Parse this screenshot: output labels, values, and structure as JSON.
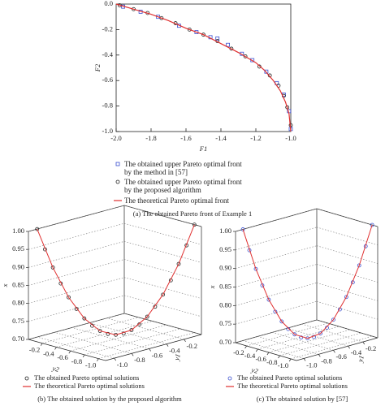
{
  "chart_data": [
    {
      "type": "scatter",
      "caption": "(a) The obtained Pareto front of Example 1",
      "xlabel": "F1",
      "ylabel": "F2",
      "xlim": [
        -2,
        -1
      ],
      "ylim": [
        -1,
        0
      ],
      "xticks": [
        {
          "value": -2,
          "label": "-2.0"
        },
        -1.8,
        -1.6,
        -1.4,
        -1.2,
        {
          "value": -1,
          "label": "-1.0"
        }
      ],
      "yticks": [
        {
          "value": -1,
          "label": "-1.0"
        },
        -0.8,
        -0.6,
        -0.4,
        -0.2,
        {
          "value": 0,
          "label": "0.0"
        }
      ],
      "series": [
        {
          "name": "The obtained upper Pareto optimal front by the method in [57]",
          "color": "#3a4fd0",
          "marker": "square",
          "x": [
            -1.96,
            -1.86,
            -1.76,
            -1.64,
            -1.54,
            -1.46,
            -1.42,
            -1.36,
            -1.28,
            -1.22,
            -1.14,
            -1.08,
            -1.04,
            -1.01,
            -1.0
          ],
          "y": [
            -0.02,
            -0.06,
            -0.1,
            -0.17,
            -0.22,
            -0.26,
            -0.27,
            -0.32,
            -0.39,
            -0.44,
            -0.53,
            -0.62,
            -0.71,
            -0.84,
            -0.98
          ]
        },
        {
          "name": "The obtained upper Pareto optimal front by the proposed algorithm",
          "color": "#222222",
          "marker": "circle",
          "x": [
            -1.98,
            -1.9,
            -1.82,
            -1.74,
            -1.66,
            -1.58,
            -1.5,
            -1.42,
            -1.34,
            -1.26,
            -1.18,
            -1.12,
            -1.07,
            -1.04,
            -1.02,
            -1.0
          ],
          "y": [
            -0.01,
            -0.04,
            -0.07,
            -0.11,
            -0.15,
            -0.2,
            -0.24,
            -0.29,
            -0.35,
            -0.41,
            -0.49,
            -0.56,
            -0.64,
            -0.72,
            -0.81,
            -0.95
          ]
        },
        {
          "name": "The theoretical Pareto optimal front",
          "color": "#e03030",
          "marker": "line",
          "x": [
            -2.0,
            -1.9,
            -1.8,
            -1.7,
            -1.6,
            -1.5,
            -1.4,
            -1.3,
            -1.2,
            -1.15,
            -1.1,
            -1.06,
            -1.03,
            -1.01,
            -1.0
          ],
          "y": [
            0,
            -0.04,
            -0.08,
            -0.13,
            -0.19,
            -0.24,
            -0.31,
            -0.38,
            -0.46,
            -0.52,
            -0.6,
            -0.68,
            -0.77,
            -0.86,
            -1.0
          ]
        }
      ]
    },
    {
      "type": "scatter3d",
      "caption": "(b) The obtained solution by the proposed algorithm",
      "xlabel": "x",
      "y1label": "y1",
      "y2label": "y2",
      "xlim": [
        0.7,
        1.0
      ],
      "y1lim": [
        -1.1,
        0
      ],
      "y2lim": [
        -1.1,
        0
      ],
      "xticks": [
        {
          "value": 0.7,
          "label": "0.70"
        },
        0.75,
        {
          "value": 0.8,
          "label": "0.80"
        },
        0.85,
        {
          "value": 0.9,
          "label": "0.90"
        },
        0.95,
        {
          "value": 1.0,
          "label": "1.00"
        }
      ],
      "y1ticks": [
        {
          "value": -1,
          "label": "-1.0"
        },
        -0.8,
        -0.6,
        -0.4,
        -0.2
      ],
      "y2ticks": [
        {
          "value": -1,
          "label": "-1.0"
        },
        -0.8,
        -0.6,
        -0.4,
        -0.2
      ],
      "series": [
        {
          "name": "The obtained Pareto optimal solutions",
          "color": "#222222",
          "marker": "circle",
          "y1": [
            0,
            -0.05,
            -0.1,
            -0.15,
            -0.2,
            -0.25,
            -0.3,
            -0.35,
            -0.4,
            -0.45,
            -0.5,
            -0.55,
            -0.6,
            -0.65,
            -0.7,
            -0.75,
            -0.8,
            -0.85,
            -0.9,
            -0.95,
            -1
          ],
          "y2": [
            -1,
            -0.95,
            -0.9,
            -0.85,
            -0.8,
            -0.75,
            -0.7,
            -0.65,
            -0.6,
            -0.55,
            -0.5,
            -0.45,
            -0.4,
            -0.35,
            -0.3,
            -0.25,
            -0.2,
            -0.15,
            -0.1,
            -0.05,
            0
          ],
          "x": [
            1,
            0.943,
            0.892,
            0.847,
            0.808,
            0.775,
            0.748,
            0.727,
            0.712,
            0.703,
            0.7,
            0.703,
            0.712,
            0.727,
            0.748,
            0.775,
            0.808,
            0.847,
            0.892,
            0.943,
            1
          ]
        },
        {
          "name": "The theoretical Pareto optimal solutions",
          "color": "#e03030",
          "marker": "line",
          "y1": [
            0,
            -0.1,
            -0.2,
            -0.3,
            -0.4,
            -0.5,
            -0.6,
            -0.7,
            -0.8,
            -0.9,
            -1
          ],
          "y2": [
            -1,
            -0.9,
            -0.8,
            -0.7,
            -0.6,
            -0.5,
            -0.4,
            -0.3,
            -0.2,
            -0.1,
            0
          ],
          "x": [
            1,
            0.892,
            0.808,
            0.748,
            0.712,
            0.7,
            0.712,
            0.748,
            0.808,
            0.892,
            1
          ]
        }
      ]
    },
    {
      "type": "scatter3d",
      "caption": "(c) The obtained solution by [57]",
      "xlabel": "x",
      "y1label": "y1",
      "y2label": "y2",
      "xlim": [
        0.7,
        1.0
      ],
      "y1lim": [
        -1.1,
        0
      ],
      "y2lim": [
        -1.1,
        0
      ],
      "xticks": [
        {
          "value": 0.7,
          "label": "0.70"
        },
        0.75,
        {
          "value": 0.8,
          "label": "0.80"
        },
        0.85,
        {
          "value": 0.9,
          "label": "0.90"
        },
        0.95,
        {
          "value": 1.0,
          "label": "1.00"
        }
      ],
      "y1ticks": [
        {
          "value": -1,
          "label": "-1.0"
        },
        -0.8,
        -0.6,
        -0.4,
        -0.2
      ],
      "y2ticks": [
        {
          "value": -1,
          "label": "-1.0"
        },
        -0.8,
        -0.6,
        -0.4,
        -0.2
      ],
      "series": [
        {
          "name": "The obtained Pareto optimal solutions",
          "color": "#3a4fd0",
          "marker": "circle",
          "y1": [
            0,
            -0.05,
            -0.1,
            -0.15,
            -0.2,
            -0.25,
            -0.3,
            -0.35,
            -0.4,
            -0.45,
            -0.5,
            -0.55,
            -0.6,
            -0.65,
            -0.7,
            -0.75,
            -0.8,
            -0.85,
            -0.9,
            -0.95,
            -1
          ],
          "y2": [
            -1,
            -0.95,
            -0.9,
            -0.85,
            -0.8,
            -0.75,
            -0.7,
            -0.65,
            -0.6,
            -0.55,
            -0.5,
            -0.45,
            -0.4,
            -0.35,
            -0.3,
            -0.25,
            -0.2,
            -0.15,
            -0.1,
            -0.05,
            0
          ],
          "x": [
            1,
            0.943,
            0.892,
            0.847,
            0.808,
            0.775,
            0.748,
            0.727,
            0.712,
            0.703,
            0.7,
            0.703,
            0.712,
            0.727,
            0.748,
            0.775,
            0.808,
            0.847,
            0.892,
            0.943,
            1
          ]
        },
        {
          "name": "The theoretical Pareto optimal solutions",
          "color": "#e03030",
          "marker": "line",
          "y1": [
            0,
            -0.1,
            -0.2,
            -0.3,
            -0.4,
            -0.5,
            -0.6,
            -0.7,
            -0.8,
            -0.9,
            -1
          ],
          "y2": [
            -1,
            -0.9,
            -0.8,
            -0.7,
            -0.6,
            -0.5,
            -0.4,
            -0.3,
            -0.2,
            -0.1,
            0
          ],
          "x": [
            1,
            0.892,
            0.808,
            0.748,
            0.712,
            0.7,
            0.712,
            0.748,
            0.808,
            0.892,
            1
          ]
        }
      ]
    }
  ]
}
